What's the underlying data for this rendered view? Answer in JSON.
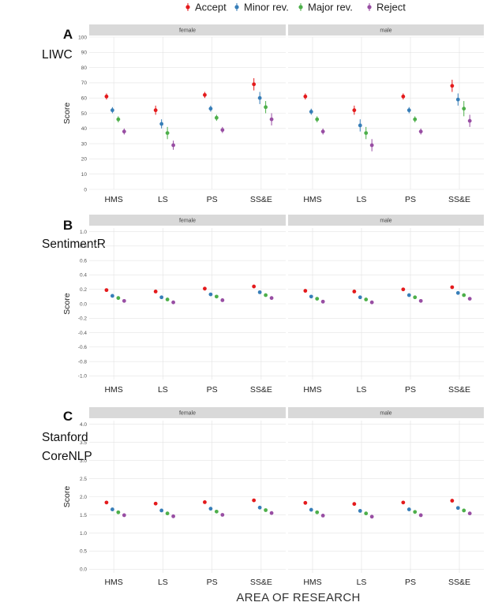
{
  "legend": {
    "items": [
      {
        "label": "Accept",
        "color": "#e41a1c"
      },
      {
        "label": "Minor rev.",
        "color": "#377eb8"
      },
      {
        "label": "Major rev.",
        "color": "#4daf4a"
      },
      {
        "label": "Reject",
        "color": "#984ea3"
      }
    ]
  },
  "x_axis_title": "AREA OF RESEARCH",
  "chart_data": [
    {
      "type": "scatter",
      "panel_letter": "A",
      "method": [
        "LIWC"
      ],
      "ylabel": "Score",
      "ylim": [
        0,
        100
      ],
      "yticks": [
        0,
        10,
        20,
        30,
        40,
        50,
        60,
        70,
        80,
        90,
        100
      ],
      "ytick_labels": [
        "0",
        "10",
        "20",
        "30",
        "40",
        "50",
        "60",
        "70",
        "80",
        "90",
        "100"
      ],
      "facets": [
        "female",
        "male"
      ],
      "categories": [
        "HMS",
        "LS",
        "PS",
        "SS&E"
      ],
      "series": [
        {
          "name": "Accept",
          "values": [
            [
              61,
              52,
              62,
              69
            ],
            [
              61,
              52,
              61,
              68
            ]
          ],
          "err": [
            [
              2,
              3,
              2,
              4
            ],
            [
              2,
              3,
              2,
              4
            ]
          ]
        },
        {
          "name": "Minor rev.",
          "values": [
            [
              52,
              43,
              53,
              60
            ],
            [
              51,
              42,
              52,
              59
            ]
          ],
          "err": [
            [
              2,
              3,
              2,
              4
            ],
            [
              2,
              4,
              2,
              4
            ]
          ]
        },
        {
          "name": "Major rev.",
          "values": [
            [
              46,
              37,
              47,
              54
            ],
            [
              46,
              37,
              46,
              53
            ]
          ],
          "err": [
            [
              2,
              4,
              2,
              4
            ],
            [
              2,
              4,
              2,
              5
            ]
          ]
        },
        {
          "name": "Reject",
          "values": [
            [
              38,
              29,
              39,
              46
            ],
            [
              38,
              29,
              38,
              45
            ]
          ],
          "err": [
            [
              2,
              3,
              2,
              4
            ],
            [
              2,
              4,
              2,
              4
            ]
          ]
        }
      ]
    },
    {
      "type": "scatter",
      "panel_letter": "B",
      "method": [
        "SentimentR"
      ],
      "ylabel": "Score",
      "ylim": [
        -1.05,
        1.05
      ],
      "yticks": [
        -1.0,
        -0.8,
        -0.6,
        -0.4,
        -0.2,
        0.0,
        0.2,
        0.4,
        0.6,
        0.8,
        1.0
      ],
      "ytick_labels": [
        "-1.0",
        "-0.8",
        "-0.6",
        "-0.4",
        "-0.2",
        "0.0",
        "0.2",
        "0.4",
        "0.6",
        "0.8",
        "1.0"
      ],
      "facets": [
        "female",
        "male"
      ],
      "categories": [
        "HMS",
        "LS",
        "PS",
        "SS&E"
      ],
      "series": [
        {
          "name": "Accept",
          "values": [
            [
              0.19,
              0.17,
              0.21,
              0.24
            ],
            [
              0.18,
              0.17,
              0.2,
              0.23
            ]
          ]
        },
        {
          "name": "Minor rev.",
          "values": [
            [
              0.11,
              0.09,
              0.13,
              0.16
            ],
            [
              0.1,
              0.09,
              0.12,
              0.15
            ]
          ]
        },
        {
          "name": "Major rev.",
          "values": [
            [
              0.08,
              0.06,
              0.1,
              0.12
            ],
            [
              0.07,
              0.06,
              0.09,
              0.12
            ]
          ]
        },
        {
          "name": "Reject",
          "values": [
            [
              0.04,
              0.02,
              0.05,
              0.08
            ],
            [
              0.03,
              0.02,
              0.04,
              0.07
            ]
          ]
        }
      ]
    },
    {
      "type": "scatter",
      "panel_letter": "C",
      "method": [
        "Stanford",
        "CoreNLP"
      ],
      "ylabel": "Score",
      "ylim": [
        -0.1,
        4.1
      ],
      "yticks": [
        0,
        0.5,
        1,
        1.5,
        2,
        2.5,
        3,
        3.5,
        4
      ],
      "ytick_labels": [
        "0.0",
        "0.5",
        "1.0",
        "1.5",
        "2.0",
        "2.5",
        "3.0",
        "3.5",
        "4.0"
      ],
      "facets": [
        "female",
        "male"
      ],
      "categories": [
        "HMS",
        "LS",
        "PS",
        "SS&E"
      ],
      "series": [
        {
          "name": "Accept",
          "values": [
            [
              1.84,
              1.81,
              1.85,
              1.9
            ],
            [
              1.83,
              1.8,
              1.84,
              1.89
            ]
          ]
        },
        {
          "name": "Minor rev.",
          "values": [
            [
              1.65,
              1.62,
              1.67,
              1.7
            ],
            [
              1.64,
              1.61,
              1.65,
              1.69
            ]
          ]
        },
        {
          "name": "Major rev.",
          "values": [
            [
              1.57,
              1.54,
              1.59,
              1.63
            ],
            [
              1.57,
              1.54,
              1.58,
              1.62
            ]
          ]
        },
        {
          "name": "Reject",
          "values": [
            [
              1.49,
              1.46,
              1.5,
              1.55
            ],
            [
              1.48,
              1.45,
              1.49,
              1.54
            ]
          ]
        }
      ]
    }
  ]
}
